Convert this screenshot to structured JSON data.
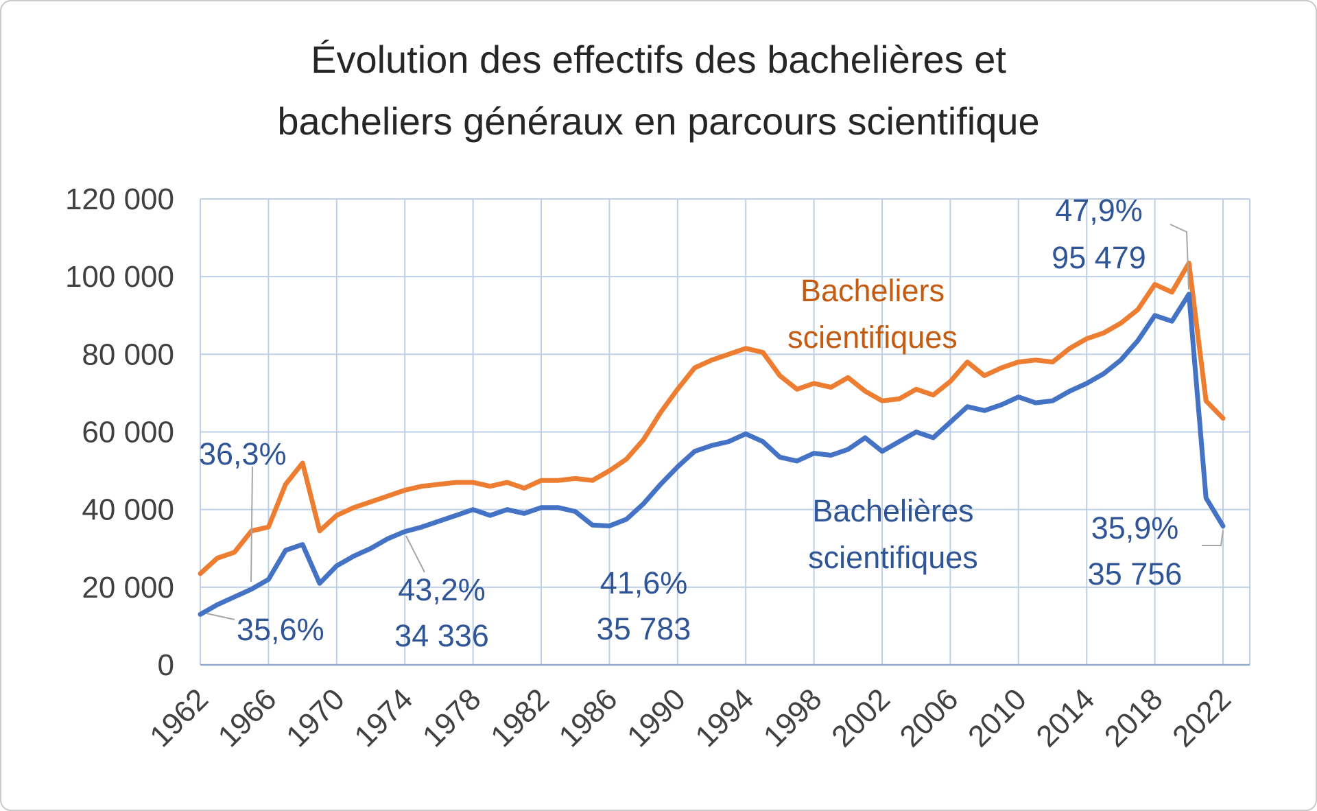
{
  "title": {
    "line1": "Évolution des effectifs des bachelières et",
    "line2": "bacheliers généraux en parcours scientifique"
  },
  "colors": {
    "orange_line": "#ED7D31",
    "blue_line": "#4472C4",
    "orange_text": "#C55A11",
    "annotation_blue": "#2F5597",
    "grid": "#BDD0E8",
    "axis": "#94ABC9",
    "tick_text": "#404040",
    "leader": "#A6A6A6"
  },
  "chart_data": {
    "type": "line",
    "title": "Évolution des effectifs des bachelières et bacheliers généraux en parcours scientifique",
    "xlabel": "",
    "ylabel": "",
    "grid": true,
    "ylim": [
      0,
      120000
    ],
    "x_range": [
      1962,
      2022
    ],
    "x": [
      1962,
      1963,
      1964,
      1965,
      1966,
      1967,
      1968,
      1969,
      1970,
      1971,
      1972,
      1973,
      1974,
      1975,
      1976,
      1977,
      1978,
      1979,
      1980,
      1981,
      1982,
      1983,
      1984,
      1985,
      1986,
      1987,
      1988,
      1989,
      1990,
      1991,
      1992,
      1993,
      1994,
      1995,
      1996,
      1997,
      1998,
      1999,
      2000,
      2001,
      2002,
      2003,
      2004,
      2005,
      2006,
      2007,
      2008,
      2009,
      2010,
      2011,
      2012,
      2013,
      2014,
      2015,
      2016,
      2017,
      2018,
      2019,
      2020,
      2021,
      2022
    ],
    "series": [
      {
        "name": "Bacheliers scientifiques",
        "color": "#ED7D31",
        "values": [
          23500,
          27500,
          29000,
          34500,
          35500,
          46500,
          52000,
          34500,
          38500,
          40500,
          42000,
          43500,
          45000,
          46000,
          46500,
          47000,
          47000,
          46000,
          47000,
          45500,
          47500,
          47500,
          48000,
          47500,
          50000,
          53000,
          58000,
          65000,
          71000,
          76500,
          78500,
          80000,
          81500,
          80500,
          74500,
          71000,
          72500,
          71500,
          74000,
          70500,
          68000,
          68500,
          71000,
          69500,
          73000,
          78000,
          74500,
          76500,
          78000,
          78500,
          78000,
          81500,
          84000,
          85500,
          88000,
          91500,
          98000,
          96000,
          103500,
          68000,
          63500
        ]
      },
      {
        "name": "Bachelières scientifiques",
        "color": "#4472C4",
        "values": [
          13000,
          15500,
          17500,
          19500,
          22000,
          29500,
          31000,
          21000,
          25500,
          28000,
          30000,
          32500,
          34336,
          35500,
          37000,
          38500,
          40000,
          38500,
          40000,
          39000,
          40500,
          40500,
          39500,
          36000,
          35783,
          37500,
          41500,
          46500,
          51000,
          55000,
          56500,
          57500,
          59500,
          57500,
          53500,
          52500,
          54500,
          54000,
          55500,
          58500,
          55000,
          57500,
          60000,
          58500,
          62500,
          66500,
          65500,
          67000,
          69000,
          67500,
          68000,
          70500,
          72500,
          75000,
          78500,
          83500,
          90000,
          88500,
          95479,
          43000,
          35756
        ]
      }
    ],
    "y_ticks": [
      {
        "value": 0,
        "label": "0"
      },
      {
        "value": 20000,
        "label": "20 000"
      },
      {
        "value": 40000,
        "label": "40 000"
      },
      {
        "value": 60000,
        "label": "60 000"
      },
      {
        "value": 80000,
        "label": "80 000"
      },
      {
        "value": 100000,
        "label": "100 000"
      },
      {
        "value": 120000,
        "label": "120 000"
      }
    ],
    "x_ticks": [
      {
        "value": 1962,
        "label": "1962"
      },
      {
        "value": 1966,
        "label": "1966"
      },
      {
        "value": 1970,
        "label": "1970"
      },
      {
        "value": 1974,
        "label": "1974"
      },
      {
        "value": 1978,
        "label": "1978"
      },
      {
        "value": 1982,
        "label": "1982"
      },
      {
        "value": 1986,
        "label": "1986"
      },
      {
        "value": 1990,
        "label": "1990"
      },
      {
        "value": 1994,
        "label": "1994"
      },
      {
        "value": 1998,
        "label": "1998"
      },
      {
        "value": 2002,
        "label": "2002"
      },
      {
        "value": 2006,
        "label": "2006"
      },
      {
        "value": 2010,
        "label": "2010"
      },
      {
        "value": 2014,
        "label": "2014"
      },
      {
        "value": 2018,
        "label": "2018"
      },
      {
        "value": 2022,
        "label": "2022"
      }
    ],
    "series_labels": [
      {
        "lines": [
          "Bacheliers",
          "scientifiques"
        ],
        "color": "#C55A11",
        "series": "Bacheliers scientifiques"
      },
      {
        "lines": [
          "Bachelières",
          "scientifiques"
        ],
        "color": "#2F5597",
        "series": "Bachelières scientifiques"
      }
    ],
    "annotations": [
      {
        "id": "ann-1962",
        "lines": [
          "35,6%"
        ],
        "year": 1962,
        "value": 13000
      },
      {
        "id": "ann-1965",
        "lines": [
          "36,3%"
        ],
        "year": 1965,
        "value": 19500
      },
      {
        "id": "ann-1974",
        "lines": [
          "43,2%",
          "34 336"
        ],
        "year": 1974,
        "value": 34336
      },
      {
        "id": "ann-1986",
        "lines": [
          "41,6%",
          "35 783"
        ],
        "year": 1986,
        "value": 35783
      },
      {
        "id": "ann-2020",
        "lines": [
          "47,9%",
          "95 479"
        ],
        "year": 2020,
        "value": 95479
      },
      {
        "id": "ann-2022",
        "lines": [
          "35,9%",
          "35 756"
        ],
        "year": 2022,
        "value": 35756
      }
    ]
  }
}
